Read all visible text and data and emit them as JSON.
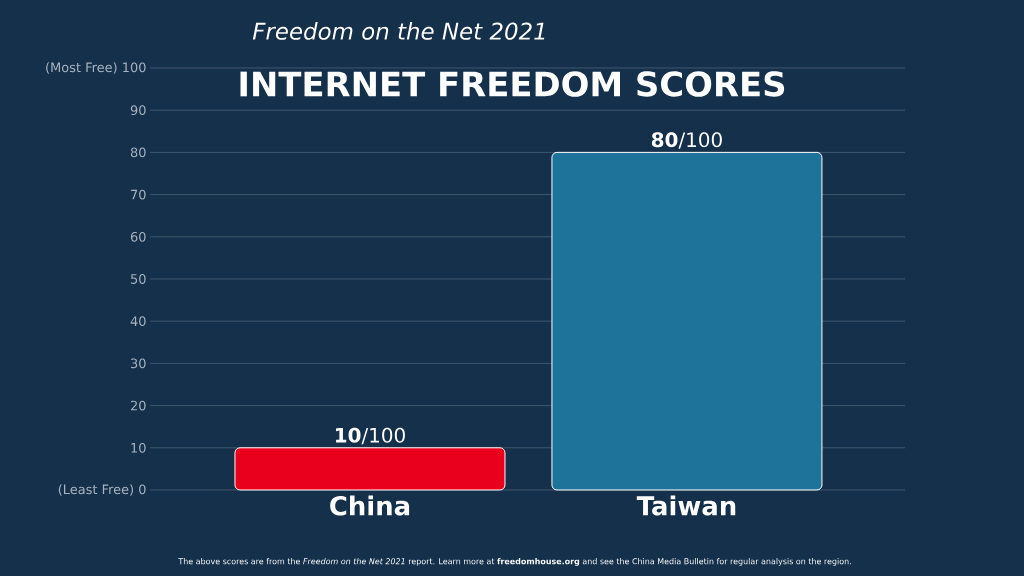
{
  "chart_data": {
    "type": "bar",
    "title": "INTERNET FREEDOM SCORES",
    "subtitle": "*Freedom on the Net 2021*",
    "categories": [
      "China",
      "Taiwan"
    ],
    "values": [
      10,
      80
    ],
    "colors": [
      "#e8001c",
      "#1d7399"
    ],
    "value_labels": [
      "**10**/100",
      "**80**/100"
    ],
    "ylim": [
      0,
      100
    ],
    "yticks": [
      {
        "value": 0,
        "label": "(Least Free)   0"
      },
      10,
      20,
      30,
      40,
      50,
      60,
      70,
      80,
      90,
      {
        "value": 100,
        "label": "(Most Free) 100"
      }
    ],
    "grid": "y",
    "annotations": [
      "The above scores are from the *Freedom on the Net 2021* report. Learn more at **freedomhouse.org** and see the China Media Bulletin for regular analysis on the region."
    ]
  }
}
